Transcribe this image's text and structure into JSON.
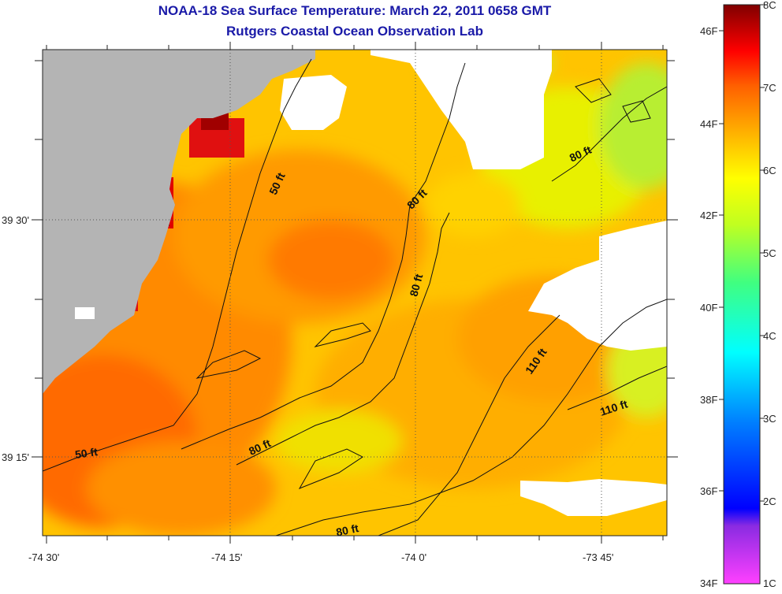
{
  "title": "NOAA-18 Sea Surface Temperature:  March 22, 2011 0658 GMT",
  "subtitle": "Rutgers Coastal Ocean Observation Lab",
  "lon_ticks": [
    "-74 30'",
    "-74 15'",
    "-74 0'",
    "-73 45'"
  ],
  "lat_ticks": [
    "39 30'",
    "39 15'"
  ],
  "contour_labels": [
    "50 ft",
    "50 ft",
    "80 ft",
    "80 ft",
    "80 ft",
    "80 ft",
    "80 ft",
    "110 ft",
    "110 ft"
  ],
  "colorbar": {
    "fahrenheit": [
      "46F",
      "44F",
      "42F",
      "40F",
      "38F",
      "36F",
      "34F"
    ],
    "celsius": [
      "8C",
      "7C",
      "6C",
      "5C",
      "4C",
      "3C",
      "2C",
      "1C"
    ]
  },
  "colors": {
    "land": "#b4b4b4",
    "no_data": "#ffffff",
    "title": "#1a1aa8"
  }
}
